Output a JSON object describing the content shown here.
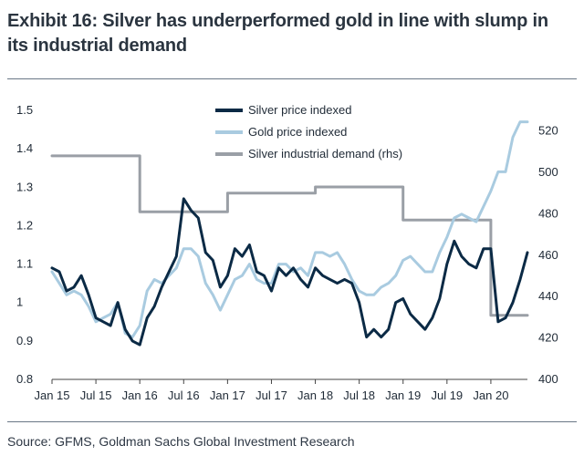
{
  "header": {
    "title": "Exhibit 16: Silver has underperformed gold in line with slump in its industrial demand"
  },
  "footer": {
    "source": "Source: GFMS, Goldman Sachs Global Investment Research"
  },
  "chart_data": {
    "type": "line",
    "title": "Exhibit 16: Silver has underperformed gold in line with slump in its industrial demand",
    "xlabel": "",
    "ylabel": "",
    "y_left_lim": [
      0.8,
      1.5
    ],
    "y_left_ticks": [
      "0.8",
      "0.9",
      "1",
      "1.1",
      "1.2",
      "1.3",
      "1.4",
      "1.5"
    ],
    "y_right_lim": [
      400,
      530
    ],
    "y_right_ticks": [
      "400",
      "420",
      "440",
      "460",
      "480",
      "500",
      "520"
    ],
    "x_range": [
      "2015-01",
      "2020-06"
    ],
    "x_ticks": [
      "Jan 15",
      "Jul 15",
      "Jan 16",
      "Jul 16",
      "Jan 17",
      "Jul 17",
      "Jan 18",
      "Jul 18",
      "Jan 19",
      "Jul 19",
      "Jan 20"
    ],
    "grid": false,
    "legend_position": "top-center",
    "series": [
      {
        "name": "Silver price indexed",
        "axis": "left",
        "color": "#0b2a45",
        "x": [
          "2015-01",
          "2015-02",
          "2015-03",
          "2015-04",
          "2015-05",
          "2015-06",
          "2015-07",
          "2015-08",
          "2015-09",
          "2015-10",
          "2015-11",
          "2015-12",
          "2016-01",
          "2016-02",
          "2016-03",
          "2016-04",
          "2016-05",
          "2016-06",
          "2016-07",
          "2016-08",
          "2016-09",
          "2016-10",
          "2016-11",
          "2016-12",
          "2017-01",
          "2017-02",
          "2017-03",
          "2017-04",
          "2017-05",
          "2017-06",
          "2017-07",
          "2017-08",
          "2017-09",
          "2017-10",
          "2017-11",
          "2017-12",
          "2018-01",
          "2018-02",
          "2018-03",
          "2018-04",
          "2018-05",
          "2018-06",
          "2018-07",
          "2018-08",
          "2018-09",
          "2018-10",
          "2018-11",
          "2018-12",
          "2019-01",
          "2019-02",
          "2019-03",
          "2019-04",
          "2019-05",
          "2019-06",
          "2019-07",
          "2019-08",
          "2019-09",
          "2019-10",
          "2019-11",
          "2019-12",
          "2020-01",
          "2020-02",
          "2020-03",
          "2020-04",
          "2020-05",
          "2020-06"
        ],
        "values": [
          1.09,
          1.08,
          1.03,
          1.04,
          1.07,
          1.02,
          0.96,
          0.95,
          0.94,
          1.0,
          0.93,
          0.9,
          0.89,
          0.96,
          0.99,
          1.04,
          1.08,
          1.12,
          1.27,
          1.24,
          1.22,
          1.13,
          1.11,
          1.04,
          1.07,
          1.14,
          1.12,
          1.15,
          1.08,
          1.07,
          1.03,
          1.09,
          1.07,
          1.09,
          1.06,
          1.04,
          1.09,
          1.07,
          1.06,
          1.05,
          1.06,
          1.05,
          1.0,
          0.91,
          0.93,
          0.91,
          0.93,
          1.0,
          1.01,
          0.97,
          0.95,
          0.93,
          0.96,
          1.01,
          1.1,
          1.16,
          1.12,
          1.1,
          1.09,
          1.14,
          1.14,
          0.95,
          0.96,
          1.0,
          1.06,
          1.13
        ]
      },
      {
        "name": "Gold price indexed",
        "axis": "left",
        "color": "#a9cbe0",
        "x": [
          "2015-01",
          "2015-02",
          "2015-03",
          "2015-04",
          "2015-05",
          "2015-06",
          "2015-07",
          "2015-08",
          "2015-09",
          "2015-10",
          "2015-11",
          "2015-12",
          "2016-01",
          "2016-02",
          "2016-03",
          "2016-04",
          "2016-05",
          "2016-06",
          "2016-07",
          "2016-08",
          "2016-09",
          "2016-10",
          "2016-11",
          "2016-12",
          "2017-01",
          "2017-02",
          "2017-03",
          "2017-04",
          "2017-05",
          "2017-06",
          "2017-07",
          "2017-08",
          "2017-09",
          "2017-10",
          "2017-11",
          "2017-12",
          "2018-01",
          "2018-02",
          "2018-03",
          "2018-04",
          "2018-05",
          "2018-06",
          "2018-07",
          "2018-08",
          "2018-09",
          "2018-10",
          "2018-11",
          "2018-12",
          "2019-01",
          "2019-02",
          "2019-03",
          "2019-04",
          "2019-05",
          "2019-06",
          "2019-07",
          "2019-08",
          "2019-09",
          "2019-10",
          "2019-11",
          "2019-12",
          "2020-01",
          "2020-02",
          "2020-03",
          "2020-04",
          "2020-05",
          "2020-06"
        ],
        "values": [
          1.08,
          1.05,
          1.02,
          1.03,
          1.02,
          0.99,
          0.95,
          0.96,
          0.97,
          1.0,
          0.92,
          0.91,
          0.94,
          1.03,
          1.06,
          1.05,
          1.07,
          1.09,
          1.14,
          1.14,
          1.12,
          1.05,
          1.02,
          0.98,
          1.02,
          1.06,
          1.07,
          1.1,
          1.06,
          1.05,
          1.05,
          1.1,
          1.1,
          1.08,
          1.09,
          1.07,
          1.13,
          1.13,
          1.12,
          1.13,
          1.1,
          1.06,
          1.03,
          1.02,
          1.02,
          1.04,
          1.05,
          1.07,
          1.11,
          1.12,
          1.1,
          1.08,
          1.08,
          1.13,
          1.17,
          1.22,
          1.23,
          1.22,
          1.21,
          1.25,
          1.29,
          1.34,
          1.34,
          1.43,
          1.47,
          1.47
        ]
      },
      {
        "name": "Silver industrial demand (rhs)",
        "axis": "right",
        "color": "#9a9fa6",
        "step": true,
        "x": [
          "2015-01",
          "2016-01",
          "2016-01",
          "2017-01",
          "2017-01",
          "2018-01",
          "2018-01",
          "2019-01",
          "2019-01",
          "2020-01",
          "2020-01",
          "2020-06"
        ],
        "values": [
          508,
          508,
          481,
          481,
          490,
          490,
          493,
          493,
          477,
          477,
          431,
          431
        ]
      }
    ]
  }
}
